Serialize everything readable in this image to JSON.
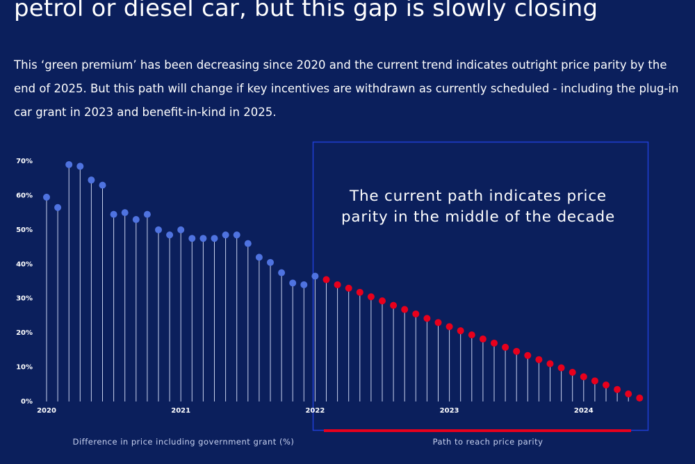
{
  "headline": "petrol or diesel car, but this gap is slowly closing",
  "intro": "This ‘green premium’ has been decreasing since 2020 and the current trend indicates outright price parity by the end of 2025. But this path will change if key incentives are withdrawn as currently scheduled - including the plug-in car grant in 2023 and benefit-in-kind in 2025.",
  "colors": {
    "background": "#0b1f5c",
    "actual": "#4f73e0",
    "projected": "#e8001c",
    "stem": "#c9d3ef",
    "annotation_border": "#1f3fd4"
  },
  "chart_data": {
    "type": "lollipop",
    "ylim": [
      0,
      70
    ],
    "yticks": [
      {
        "value": 0,
        "label": "0%"
      },
      {
        "value": 10,
        "label": "10%"
      },
      {
        "value": 20,
        "label": "20%"
      },
      {
        "value": 30,
        "label": "30%"
      },
      {
        "value": 40,
        "label": "40%"
      },
      {
        "value": 50,
        "label": "50%"
      },
      {
        "value": 60,
        "label": "60%"
      },
      {
        "value": 70,
        "label": "70%"
      }
    ],
    "xticks": [
      {
        "index": 0,
        "label": "2020"
      },
      {
        "index": 12,
        "label": "2021"
      },
      {
        "index": 24,
        "label": "2022"
      },
      {
        "index": 36,
        "label": "2023"
      },
      {
        "index": 48,
        "label": "2024"
      }
    ],
    "series": [
      {
        "name": "Difference in price including government grant (%)",
        "start_index": 0,
        "values": [
          59.5,
          56.5,
          69,
          68.5,
          64.5,
          63,
          54.5,
          55,
          53,
          54.5,
          50,
          48.5,
          50,
          47.5,
          47.5,
          47.5,
          48.5,
          48.5,
          46,
          42,
          40.5,
          37.5,
          34.5,
          34,
          36.5
        ]
      },
      {
        "name": "Path to reach price parity",
        "start_index": 25,
        "values": [
          35.5,
          34,
          33,
          31.8,
          30.5,
          29.3,
          28,
          26.8,
          25.5,
          24.2,
          23,
          21.8,
          20.6,
          19.4,
          18.2,
          17,
          15.8,
          14.6,
          13.4,
          12.2,
          11,
          9.8,
          8.5,
          7.2,
          6,
          4.8,
          3.5,
          2.2,
          1
        ]
      }
    ],
    "annotation": "The current path indicates price parity in the middle of the decade",
    "legend": [
      {
        "label": "Difference in price including government grant (%)",
        "color": "#4f73e0"
      },
      {
        "label": "Path to reach price parity",
        "color": "#e8001c"
      }
    ]
  }
}
